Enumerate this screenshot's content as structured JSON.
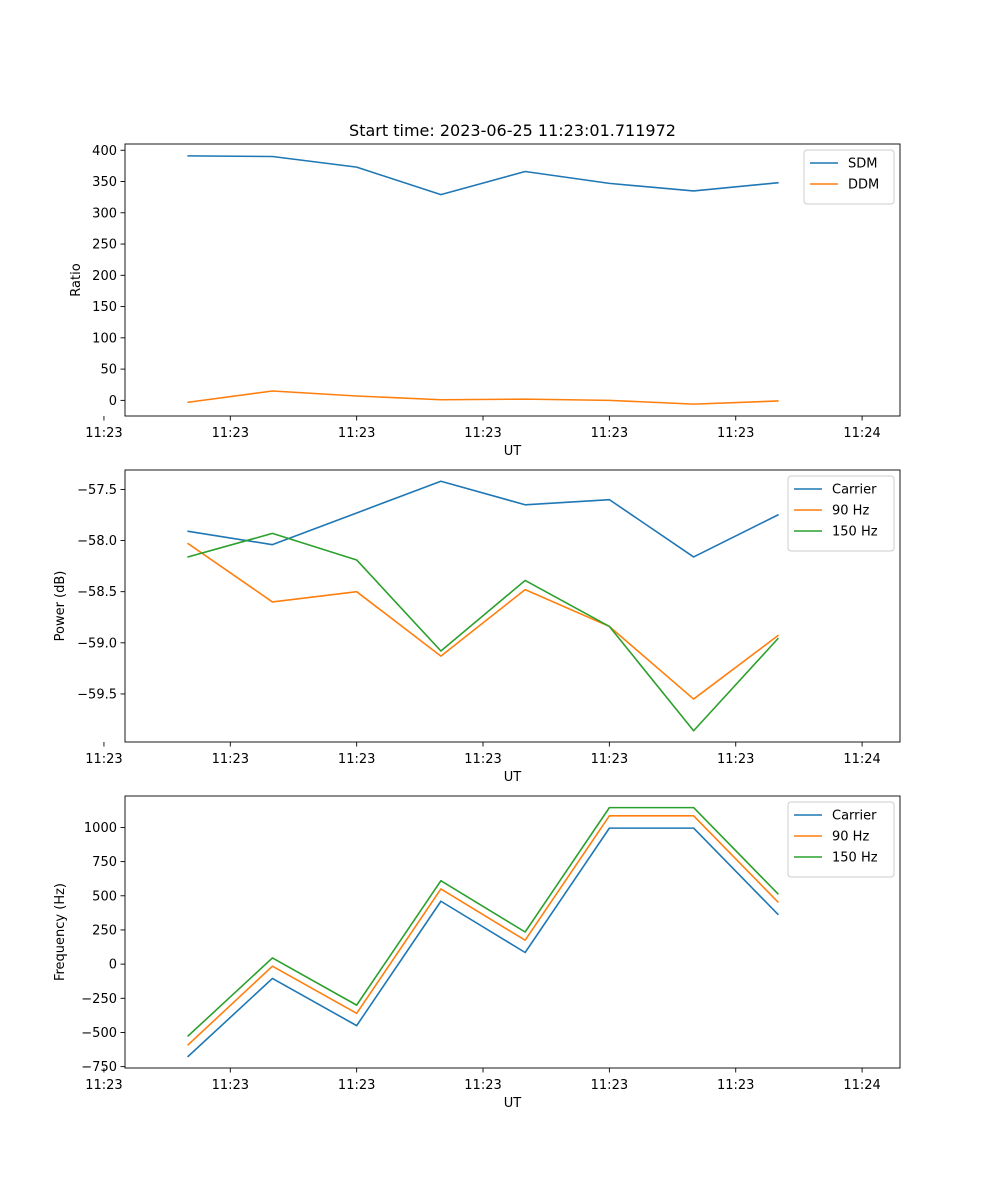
{
  "figure": {
    "title": "Start time: 2023-06-25 11:23:01.711972"
  },
  "colors": {
    "blue": "#1f77b4",
    "orange": "#ff7f0e",
    "green": "#2ca02c"
  },
  "chart_data": [
    {
      "type": "line",
      "title": "Start time: 2023-06-25 11:23:01.711972",
      "xlabel": "UT",
      "ylabel": "Ratio",
      "x": [
        1,
        2,
        3,
        4,
        5,
        6,
        7,
        8
      ],
      "xlim": [
        0.25,
        9.45
      ],
      "x_ticks": [
        0,
        1.5,
        3,
        4.5,
        6,
        7.5,
        9
      ],
      "x_tick_labels": [
        "11:23",
        "11:23",
        "11:23",
        "11:23",
        "11:23",
        "11:23",
        "11:24"
      ],
      "ylim": [
        -25,
        410
      ],
      "y_ticks": [
        0,
        50,
        100,
        150,
        200,
        250,
        300,
        350,
        400
      ],
      "y_tick_labels": [
        "0",
        "50",
        "100",
        "150",
        "200",
        "250",
        "300",
        "350",
        "400"
      ],
      "legend_position": "top-right",
      "grid": false,
      "series": [
        {
          "name": "SDM",
          "color": "#1f77b4",
          "values": [
            391,
            390,
            373,
            329,
            366,
            347,
            335,
            348
          ]
        },
        {
          "name": "DDM",
          "color": "#ff7f0e",
          "values": [
            -3,
            15,
            7,
            1,
            2,
            0,
            -6,
            -1
          ]
        }
      ]
    },
    {
      "type": "line",
      "xlabel": "UT",
      "ylabel": "Power (dB)",
      "x": [
        1,
        2,
        3,
        4,
        5,
        6,
        7,
        8
      ],
      "xlim": [
        0.25,
        9.45
      ],
      "x_ticks": [
        0,
        1.5,
        3,
        4.5,
        6,
        7.5,
        9
      ],
      "x_tick_labels": [
        "11:23",
        "11:23",
        "11:23",
        "11:23",
        "11:23",
        "11:23",
        "11:24"
      ],
      "ylim": [
        -59.97,
        -57.31
      ],
      "y_ticks": [
        -59.5,
        -59.0,
        -58.5,
        -58.0,
        -57.5
      ],
      "y_tick_labels": [
        "−59.5",
        "−59.0",
        "−58.5",
        "−58.0",
        "−57.5"
      ],
      "legend_position": "top-right",
      "grid": false,
      "series": [
        {
          "name": "Carrier",
          "color": "#1f77b4",
          "values": [
            -57.91,
            -58.04,
            -57.73,
            -57.42,
            -57.65,
            -57.6,
            -58.16,
            -57.75
          ]
        },
        {
          "name": "90 Hz",
          "color": "#ff7f0e",
          "values": [
            -58.03,
            -58.6,
            -58.5,
            -59.13,
            -58.48,
            -58.84,
            -59.55,
            -58.93
          ]
        },
        {
          "name": "150 Hz",
          "color": "#2ca02c",
          "values": [
            -58.16,
            -57.93,
            -58.19,
            -59.08,
            -58.39,
            -58.84,
            -59.86,
            -58.96
          ]
        }
      ]
    },
    {
      "type": "line",
      "xlabel": "UT",
      "ylabel": "Frequency (Hz)",
      "x": [
        1,
        2,
        3,
        4,
        5,
        6,
        7,
        8
      ],
      "xlim": [
        0.25,
        9.45
      ],
      "x_ticks": [
        0,
        1.5,
        3,
        4.5,
        6,
        7.5,
        9
      ],
      "x_tick_labels": [
        "11:23",
        "11:23",
        "11:23",
        "11:23",
        "11:23",
        "11:23",
        "11:24"
      ],
      "ylim": [
        -760,
        1230
      ],
      "y_ticks": [
        -750,
        -500,
        -250,
        0,
        250,
        500,
        750,
        1000
      ],
      "y_tick_labels": [
        "−750",
        "−500",
        "−250",
        "0",
        "250",
        "500",
        "750",
        "1000"
      ],
      "legend_position": "top-right",
      "grid": false,
      "series": [
        {
          "name": "Carrier",
          "color": "#1f77b4",
          "values": [
            -675,
            -105,
            -450,
            460,
            85,
            995,
            995,
            365
          ]
        },
        {
          "name": "90 Hz",
          "color": "#ff7f0e",
          "values": [
            -590,
            -15,
            -360,
            550,
            175,
            1085,
            1085,
            455
          ]
        },
        {
          "name": "150 Hz",
          "color": "#2ca02c",
          "values": [
            -525,
            45,
            -300,
            610,
            235,
            1145,
            1145,
            515
          ]
        }
      ]
    }
  ]
}
